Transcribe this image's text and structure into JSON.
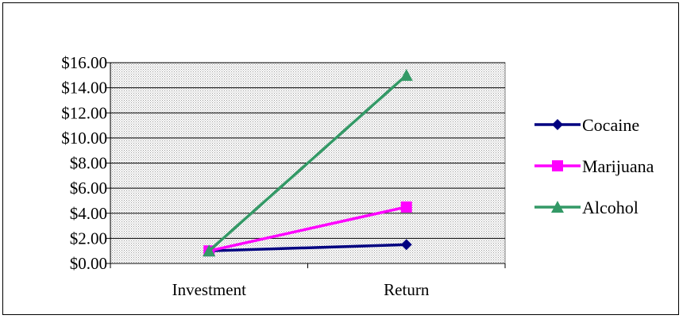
{
  "chart_data": {
    "type": "line",
    "categories": [
      "Investment",
      "Return"
    ],
    "series": [
      {
        "name": "Cocaine",
        "values": [
          1.0,
          1.5
        ],
        "color": "#000080",
        "marker": "diamond"
      },
      {
        "name": "Marijuana",
        "values": [
          1.0,
          4.5
        ],
        "color": "#ff00ff",
        "marker": "square"
      },
      {
        "name": "Alcohol",
        "values": [
          1.0,
          15.0
        ],
        "color": "#339966",
        "marker": "triangle"
      }
    ],
    "ylim": [
      0,
      16
    ],
    "yticks": [
      0,
      2,
      4,
      6,
      8,
      10,
      12,
      14,
      16
    ],
    "ytick_labels": [
      "$0.00",
      "$2.00",
      "$4.00",
      "$6.00",
      "$8.00",
      "$10.00",
      "$12.00",
      "$14.00",
      "$16.00"
    ],
    "grid": true,
    "plot_background": "dotted-gray",
    "legend_position": "right"
  }
}
